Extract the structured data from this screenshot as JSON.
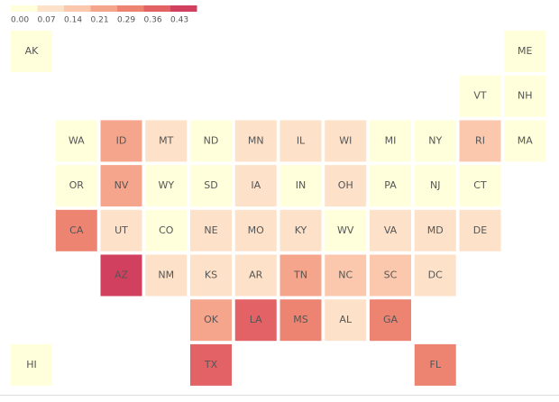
{
  "chart_data": {
    "type": "tile-map",
    "states": [
      "AK",
      "ME",
      "VT",
      "NH",
      "WA",
      "ID",
      "MT",
      "ND",
      "MN",
      "IL",
      "WI",
      "MI",
      "NY",
      "RI",
      "MA",
      "OR",
      "NV",
      "WY",
      "SD",
      "IA",
      "IN",
      "OH",
      "PA",
      "NJ",
      "CT",
      "CA",
      "UT",
      "CO",
      "NE",
      "MO",
      "KY",
      "WV",
      "VA",
      "MD",
      "DE",
      "AZ",
      "NM",
      "KS",
      "AR",
      "TN",
      "NC",
      "SC",
      "DC",
      "OK",
      "LA",
      "MS",
      "AL",
      "GA",
      "HI",
      "TX",
      "FL"
    ],
    "values": [
      0.03,
      0.03,
      0.03,
      0.03,
      0.03,
      0.25,
      0.1,
      0.03,
      0.1,
      0.1,
      0.1,
      0.03,
      0.03,
      0.17,
      0.03,
      0.03,
      0.25,
      0.03,
      0.03,
      0.1,
      0.03,
      0.1,
      0.03,
      0.03,
      0.03,
      0.32,
      0.1,
      0.03,
      0.1,
      0.1,
      0.1,
      0.03,
      0.1,
      0.1,
      0.1,
      0.45,
      0.1,
      0.1,
      0.1,
      0.25,
      0.17,
      0.17,
      0.1,
      0.25,
      0.39,
      0.32,
      0.1,
      0.32,
      0.03,
      0.39,
      0.32
    ],
    "legend": {
      "ticks": [
        {
          "value": 0,
          "label": "0.00"
        },
        0.07,
        0.14,
        0.21,
        0.29,
        0.36,
        0.43
      ],
      "colors": [
        "#ffffdc",
        "#fde2c9",
        "#fbc8ad",
        "#f6a58d",
        "#ed8472",
        "#e26266",
        "#d1415f"
      ]
    }
  }
}
